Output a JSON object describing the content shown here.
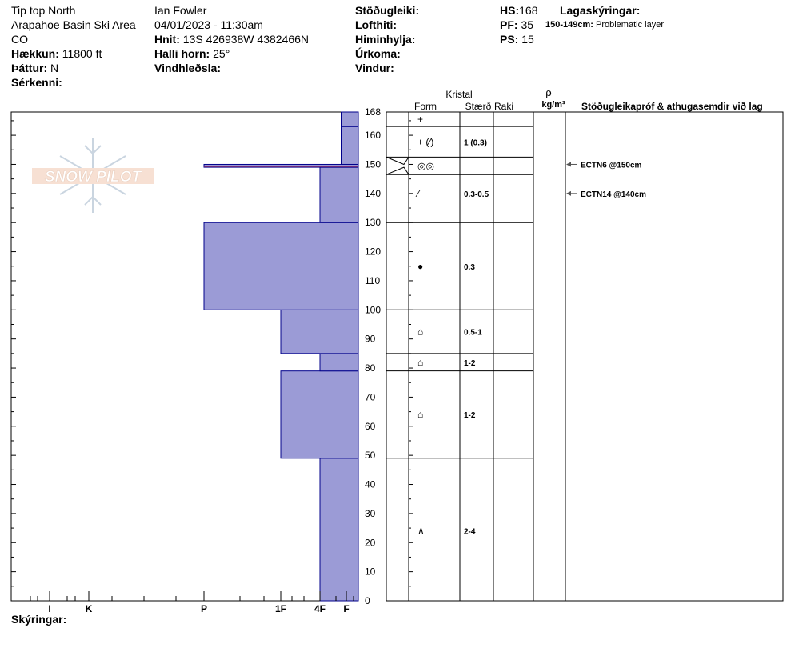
{
  "header": {
    "location": "Tip top North",
    "area": "Arapahoe Basin Ski Area",
    "state": "CO",
    "elevation_label": "Hækkun:",
    "elevation": "11800 ft",
    "aspect_label": "Þáttur:",
    "aspect": "N",
    "features_label": "Sérkenni:",
    "observer": "Ian Fowler",
    "datetime": "04/01/2023 - 11:30am",
    "coords_label": "Hnit:",
    "coords": "13S 426938W 4382466N",
    "slope_label": "Halli horn:",
    "slope": "25°",
    "wind_loading_label": "Vindhleðsla:",
    "stability_label": "Stöðugleiki:",
    "air_temp_label": "Lofthiti:",
    "sky_label": "Himinhylja:",
    "precip_label": "Úrkoma:",
    "wind_label": "Vindur:",
    "hs_label": "HS:",
    "hs": "168",
    "pf_label": "PF:",
    "pf": "35",
    "ps_label": "PS:",
    "ps": "15",
    "layer_notes_label": "Lagaskýringar:",
    "layer_note_range": "150-149cm:",
    "layer_note_text": "Problematic layer"
  },
  "footer": {
    "notes_label": "Skýringar:"
  },
  "logo": {
    "text": "SNOW PILOT"
  },
  "columns": {
    "crystal": "Kristal",
    "form": "Form",
    "size": "Stærð",
    "moisture": "Raki",
    "rho": "ρ",
    "density_unit": "kg/m³",
    "comments": "Stöðugleikapróf & athugasemdir við lag"
  },
  "colors": {
    "hardness_fill": "#9b9bd6",
    "hardness_edge": "#00008b",
    "weak_layer": "#c0305a"
  },
  "chart_data": {
    "type": "bar",
    "title": "",
    "ylabel": "",
    "y_unit": "cm",
    "ylim": [
      0,
      168
    ],
    "y_ticks": [
      0,
      10,
      20,
      30,
      40,
      50,
      60,
      70,
      80,
      90,
      100,
      110,
      120,
      130,
      140,
      150,
      160,
      168
    ],
    "hardness_scale": [
      "F",
      "4F",
      "1F",
      "P",
      "K",
      "I"
    ],
    "hardness_layers": [
      {
        "bottom": 0,
        "top": 49,
        "hardness": "4F"
      },
      {
        "bottom": 49,
        "top": 79,
        "hardness": "1F"
      },
      {
        "bottom": 79,
        "top": 85,
        "hardness": "4F"
      },
      {
        "bottom": 85,
        "top": 100,
        "hardness": "1F"
      },
      {
        "bottom": 100,
        "top": 130,
        "hardness": "P"
      },
      {
        "bottom": 130,
        "top": 149,
        "hardness": "4F"
      },
      {
        "bottom": 149,
        "top": 150,
        "hardness": "P",
        "problematic": true
      },
      {
        "bottom": 150,
        "top": 163,
        "hardness": "4F-F"
      },
      {
        "bottom": 163,
        "top": 168,
        "hardness": "4F-F"
      }
    ],
    "grain_layers": [
      {
        "bottom": 163,
        "top": 168,
        "form": "+",
        "size": ""
      },
      {
        "bottom": 150,
        "top": 163,
        "form": "+ (⁄)",
        "size": "1 (0.3)"
      },
      {
        "bottom": 149,
        "top": 150,
        "form": "◎◎",
        "size": ""
      },
      {
        "bottom": 130,
        "top": 149,
        "form": "⁄",
        "size": "0.3-0.5"
      },
      {
        "bottom": 100,
        "top": 130,
        "form": "●",
        "size": "0.3"
      },
      {
        "bottom": 85,
        "top": 100,
        "form": "⌂",
        "size": "0.5-1"
      },
      {
        "bottom": 79,
        "top": 85,
        "form": "⌂",
        "size": "1-2"
      },
      {
        "bottom": 49,
        "top": 79,
        "form": "⌂",
        "size": "1-2"
      },
      {
        "bottom": 0,
        "top": 49,
        "form": "∧",
        "size": "2-4"
      }
    ],
    "stability_tests": [
      {
        "depth": 150,
        "label": "ECTN6 @150cm"
      },
      {
        "depth": 140,
        "label": "ECTN14 @140cm"
      }
    ]
  }
}
